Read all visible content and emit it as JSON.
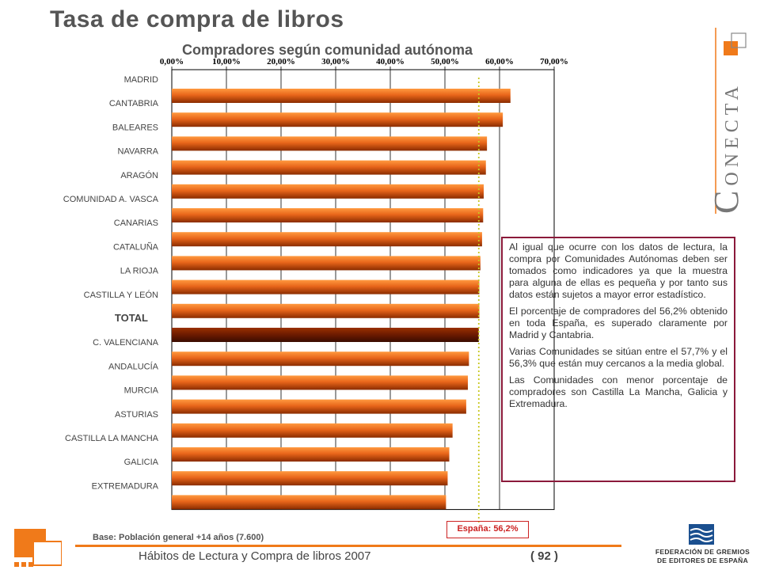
{
  "page": {
    "title": "Tasa de compra de libros",
    "footer_text": "Hábitos de Lectura y Compra de libros 2007",
    "page_number": "( 92 )",
    "base_label": "Base:",
    "base_value": "Población general +14 años (7.600)",
    "spain_label": "España: 56,2%",
    "brand_letters": [
      "C",
      "O",
      "N",
      "E",
      "C",
      "T",
      "A"
    ],
    "federation": [
      "FEDERACIÓN DE GREMIOS",
      "DE EDITORES DE ESPAÑA"
    ],
    "colors": {
      "bar": "#e8651a",
      "bar_highlight": "#6b1a00",
      "accent": "#f07a1a",
      "box_border": "#8b1a3a",
      "reference_line": "#c8c820"
    }
  },
  "note": {
    "paragraphs": [
      "Al igual que ocurre con los datos de lectura, la compra por Comunidades Autónomas deben ser tomados como indicadores ya que la muestra para alguna de ellas es pequeña y por tanto sus datos están sujetos a mayor error estadístico.",
      "El porcentaje de compradores del 56,2% obtenido en toda España, es superado claramente por Madrid y Cantabria.",
      "Varias Comunidades se sitúan entre el 57,7% y el 56,3% que están muy cercanos a la media global.",
      "Las Comunidades con menor porcentaje de compradores son Castilla La Mancha, Galicia y Extremadura."
    ]
  },
  "chart_data": {
    "type": "bar",
    "orientation": "horizontal",
    "title": "Compradores según comunidad autónoma",
    "categories": [
      "MADRID",
      "CANTABRIA",
      "BALEARES",
      "NAVARRA",
      "ARAGÓN",
      "COMUNIDAD A. VASCA",
      "CANARIAS",
      "CATALUÑA",
      "LA RIOJA",
      "CASTILLA Y LEÓN",
      "TOTAL",
      "C. VALENCIANA",
      "ANDALUCÍA",
      "MURCIA",
      "ASTURIAS",
      "CASTILLA LA MANCHA",
      "GALICIA",
      "EXTREMADURA"
    ],
    "values": [
      62.0,
      60.6,
      57.7,
      57.5,
      57.1,
      57.0,
      56.8,
      56.5,
      56.3,
      56.3,
      56.2,
      54.4,
      54.2,
      53.9,
      51.4,
      50.8,
      50.5,
      50.2
    ],
    "highlight": "TOTAL",
    "reference_value": 56.2,
    "xlim": [
      0,
      70
    ],
    "x_ticks": [
      "0,00%",
      "10,00%",
      "20,00%",
      "30,00%",
      "40,00%",
      "50,00%",
      "60,00%",
      "70,00%"
    ],
    "x_axis_position": "top",
    "grid": true
  }
}
